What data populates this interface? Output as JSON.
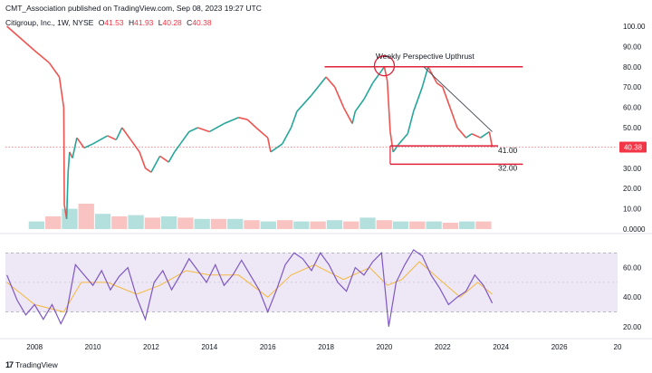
{
  "header": {
    "published": "CMT_Association published on TradingView.com, Sep 08, 2023 19:27 UTC"
  },
  "legend": {
    "symbol": "Citigroup, Inc., 1W, NYSE",
    "o_label": "O",
    "o_value": "41.53",
    "h_label": "H",
    "h_value": "41.93",
    "l_label": "L",
    "l_value": "40.28",
    "c_label": "C",
    "c_value": "40.38"
  },
  "brand": {
    "logo": "17",
    "name": "TradingView"
  },
  "colors": {
    "up": "#26a69a",
    "down": "#ef5350",
    "annotation": "#e0213a",
    "rsi": "#7e57c2",
    "rsi_ma": "#f5b83d",
    "rsi_band": "#ede7f6"
  },
  "chart_data": [
    {
      "type": "line",
      "title": "",
      "ylim": [
        0,
        100
      ],
      "y_ticks": [
        "100.00",
        "90.00",
        "80.00",
        "70.00",
        "60.00",
        "50.00",
        "40.00",
        "30.00",
        "20.00",
        "10.00",
        "0.0000"
      ],
      "x_ticks": [
        "2008",
        "2010",
        "2012",
        "2014",
        "2016",
        "2018",
        "2020",
        "2022",
        "2024",
        "2026",
        "20"
      ],
      "xlim": [
        2007.0,
        2028.0
      ],
      "price_series": {
        "name": "",
        "x": [
          2007.05,
          2008.0,
          2008.5,
          2008.85,
          2009.0,
          2009.02,
          2009.1,
          2009.15,
          2009.2,
          2009.3,
          2009.45,
          2009.7,
          2010.0,
          2010.5,
          2010.8,
          2011.0,
          2011.3,
          2011.6,
          2011.8,
          2012.0,
          2012.3,
          2012.6,
          2012.8,
          2013.0,
          2013.3,
          2013.6,
          2014.0,
          2014.5,
          2015.0,
          2015.3,
          2015.6,
          2016.0,
          2016.1,
          2016.5,
          2016.8,
          2017.0,
          2017.5,
          2018.0,
          2018.3,
          2018.6,
          2018.9,
          2019.0,
          2019.3,
          2019.6,
          2019.9,
          2020.0,
          2020.1,
          2020.2,
          2020.3,
          2020.5,
          2020.8,
          2021.0,
          2021.3,
          2021.5,
          2021.8,
          2022.0,
          2022.3,
          2022.5,
          2022.8,
          2023.0,
          2023.3,
          2023.6,
          2023.7
        ],
        "y": [
          100,
          88,
          82,
          75,
          60,
          12,
          5,
          28,
          38,
          35,
          45,
          40,
          42,
          46,
          44,
          50,
          44,
          38,
          30,
          28,
          36,
          33,
          38,
          42,
          48,
          50,
          48,
          52,
          55,
          54,
          50,
          45,
          38,
          42,
          50,
          58,
          66,
          75,
          70,
          60,
          52,
          58,
          64,
          72,
          78,
          80,
          73,
          48,
          38,
          42,
          47,
          58,
          70,
          80,
          72,
          70,
          58,
          50,
          45,
          47,
          45,
          48,
          40.38
        ]
      },
      "resistance_level": 80,
      "support_levels": [
        41.0,
        32.0
      ],
      "trendline": {
        "x": [
          2021.35,
          2023.7
        ],
        "y": [
          80,
          48
        ]
      },
      "annotations": [
        {
          "text": "Weekly Perspective Upthrust",
          "x": 2020.0,
          "y": 80
        },
        {
          "text": "41.00",
          "x": 2023.9,
          "y": 41.0
        },
        {
          "text": "32.00",
          "x": 2023.9,
          "y": 32.0
        }
      ],
      "last_price_label": "40.38",
      "volume": {
        "shown": true,
        "values": [
          0.3,
          0.5,
          0.8,
          1.0,
          0.6,
          0.5,
          0.55,
          0.45,
          0.5,
          0.45,
          0.4,
          0.4,
          0.4,
          0.35,
          0.3,
          0.35,
          0.3,
          0.3,
          0.35,
          0.3,
          0.45,
          0.35,
          0.3,
          0.3,
          0.3,
          0.25,
          0.3,
          0.3
        ]
      }
    },
    {
      "type": "line",
      "title": "",
      "ylim": [
        15,
        80
      ],
      "y_ticks": [
        "60.00",
        "40.00",
        "20.00"
      ],
      "band": [
        30,
        70
      ],
      "series": [
        {
          "name": "",
          "x": [
            2007.05,
            2007.4,
            2007.7,
            2008.0,
            2008.3,
            2008.6,
            2008.9,
            2009.1,
            2009.4,
            2009.7,
            2010.0,
            2010.3,
            2010.6,
            2010.9,
            2011.2,
            2011.5,
            2011.8,
            2012.1,
            2012.4,
            2012.7,
            2013.0,
            2013.3,
            2013.6,
            2013.9,
            2014.2,
            2014.5,
            2014.8,
            2015.1,
            2015.4,
            2015.7,
            2016.0,
            2016.3,
            2016.6,
            2016.9,
            2017.2,
            2017.5,
            2017.8,
            2018.1,
            2018.4,
            2018.7,
            2019.0,
            2019.3,
            2019.6,
            2019.9,
            2020.15,
            2020.4,
            2020.7,
            2021.0,
            2021.3,
            2021.6,
            2021.9,
            2022.2,
            2022.5,
            2022.8,
            2023.1,
            2023.4,
            2023.7
          ],
          "y": [
            55,
            38,
            28,
            35,
            25,
            35,
            22,
            30,
            62,
            55,
            48,
            58,
            45,
            54,
            60,
            40,
            25,
            50,
            58,
            45,
            55,
            66,
            58,
            50,
            62,
            48,
            55,
            65,
            55,
            45,
            30,
            45,
            62,
            70,
            66,
            58,
            70,
            62,
            50,
            44,
            60,
            55,
            64,
            70,
            20,
            50,
            62,
            72,
            68,
            55,
            46,
            35,
            40,
            44,
            55,
            48,
            36
          ]
        },
        {
          "name": "",
          "x": [
            2007.05,
            2008.0,
            2009.0,
            2009.6,
            2010.5,
            2011.5,
            2012.3,
            2013.2,
            2014.0,
            2015.0,
            2016.0,
            2016.8,
            2017.6,
            2018.6,
            2019.5,
            2020.1,
            2020.6,
            2021.2,
            2021.9,
            2022.6,
            2023.2,
            2023.7
          ],
          "y": [
            50,
            35,
            30,
            50,
            50,
            42,
            48,
            58,
            55,
            55,
            40,
            55,
            62,
            52,
            60,
            48,
            52,
            64,
            52,
            40,
            50,
            42
          ]
        }
      ]
    }
  ]
}
